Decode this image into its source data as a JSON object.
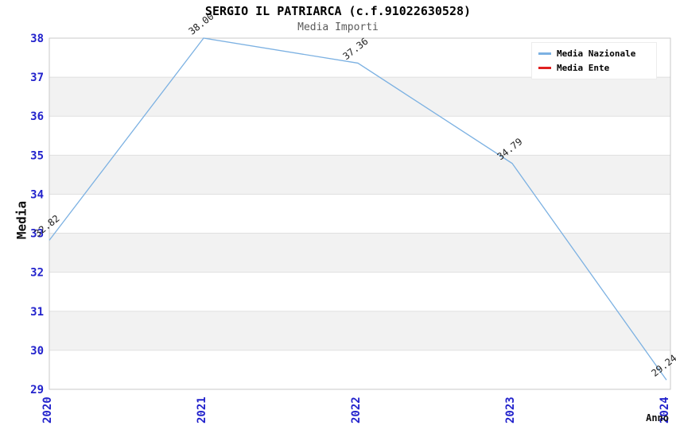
{
  "chart_data": {
    "type": "line",
    "title": "SERGIO IL PATRIARCA (c.f.91022630528)",
    "subtitle": "Media Importi",
    "xlabel": "Anno",
    "ylabel": "Media",
    "x": [
      "2020",
      "2021",
      "2022",
      "2023",
      "2024"
    ],
    "ylim": [
      29,
      38
    ],
    "ytick_step": 1,
    "grid": "horizontal",
    "banding": "alternating horizontal bands per 1 unit",
    "legend_position": "top-right",
    "series": [
      {
        "name": "Media Nazionale",
        "color": "#7cb1e2",
        "values": [
          32.82,
          38.0,
          37.36,
          34.79,
          29.24
        ],
        "point_labels": [
          "32.82",
          "38.00",
          "37.36",
          "34.79",
          "29.24"
        ]
      },
      {
        "name": "Media Ente",
        "color": "#e02020",
        "values": []
      }
    ]
  },
  "colors": {
    "tick_label": "#2323cc",
    "band": "#f2f2f2",
    "band_alt": "#ffffff",
    "grid": "#e0e0e0",
    "plot_border": "#c9c9c9",
    "title": "#000000",
    "subtitle": "#5a5a5a",
    "point_label": "#222222",
    "background": "#ffffff"
  }
}
